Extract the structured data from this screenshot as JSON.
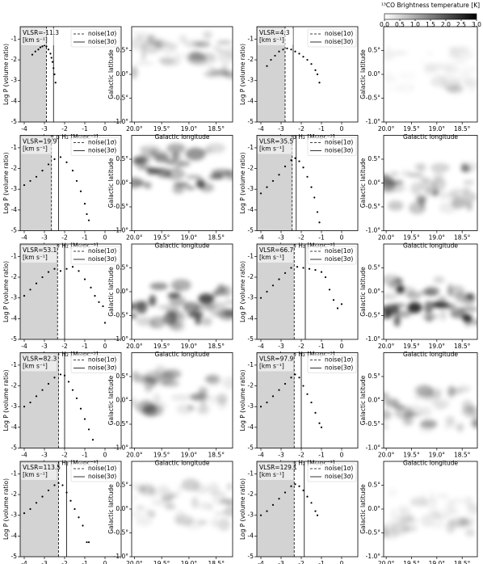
{
  "pdf_axes": {
    "xlabel": "Log  ρ H₂ [M⊙pc⁻³]",
    "ylabel": "Log P (volume ratio)",
    "xlim": [
      -4.2,
      0.8
    ],
    "ylim": [
      -5,
      -0.4
    ],
    "xticks": [
      -4,
      -3,
      -2,
      -1,
      0
    ],
    "yticks": [
      -5,
      -4,
      -3,
      -2,
      -1
    ],
    "annotation_unit": "[km s⁻¹]",
    "shade_color": "#d3d3d3",
    "point_color": "#000000",
    "legend": "upper right"
  },
  "map_axes": {
    "xlabel": "Galactic longitude",
    "ylabel": "Galactic latitude",
    "xlim": [
      20.05,
      18.2
    ],
    "ylim": [
      -1,
      1
    ],
    "xticks": [
      {
        "value": 20,
        "label": "20.0°"
      },
      {
        "value": 19.5,
        "label": "19.5°"
      },
      {
        "value": 19,
        "label": "19.0°"
      },
      {
        "value": 18.5,
        "label": "18.5°"
      }
    ],
    "yticks": [
      {
        "value": -1,
        "label": "-1.0°"
      },
      {
        "value": -0.5,
        "label": "-0.5°"
      },
      {
        "value": 0,
        "label": "0.0°"
      },
      {
        "value": 0.5,
        "label": "0.5°"
      }
    ]
  },
  "colorbar": {
    "title": "¹³CO Brightness temperature [K]",
    "lim": [
      0,
      3
    ],
    "ticks": [
      {
        "value": 0,
        "label": "0.0"
      },
      {
        "value": 0.5,
        "label": "0.5"
      },
      {
        "value": 1,
        "label": "1.0"
      },
      {
        "value": 1.5,
        "label": "1.5"
      },
      {
        "value": 2,
        "label": "2.0"
      },
      {
        "value": 2.5,
        "label": "2.5"
      },
      {
        "value": 3,
        "label": "3.0"
      }
    ],
    "colormap": "gray_r"
  },
  "chart_data": [
    {
      "type": "scatter",
      "annotation": "VLSR=-11.3",
      "x": [
        -3.6,
        -3.45,
        -3.3,
        -3.2,
        -3.1,
        -3.0,
        -2.9,
        -2.8,
        -2.7,
        -2.65,
        -2.6,
        -2.55,
        -2.5,
        -2.45
      ],
      "values": [
        -1.75,
        -1.6,
        -1.5,
        -1.4,
        -1.35,
        -1.3,
        -1.35,
        -1.5,
        -1.7,
        -1.9,
        -2.1,
        -2.4,
        -2.7,
        -3.1
      ],
      "noise": [
        {
          "name": "noise(1σ)",
          "x": -2.9,
          "style": "dashed"
        },
        {
          "name": "noise(3σ)",
          "x": -2.55,
          "style": "solid"
        }
      ]
    },
    {
      "type": "image"
    },
    {
      "type": "scatter",
      "annotation": "VLSR=4.3",
      "x": [
        -3.7,
        -3.5,
        -3.3,
        -3.1,
        -2.9,
        -2.7,
        -2.5,
        -2.3,
        -2.1,
        -1.9,
        -1.7,
        -1.5,
        -1.3,
        -1.2,
        -1.1
      ],
      "values": [
        -2.3,
        -2.0,
        -1.8,
        -1.6,
        -1.5,
        -1.45,
        -1.5,
        -1.6,
        -1.7,
        -1.85,
        -2.0,
        -2.2,
        -2.5,
        -2.7,
        -3.1
      ],
      "noise": [
        {
          "name": "noise(1σ)",
          "x": -2.8,
          "style": "dashed"
        },
        {
          "name": "noise(3σ)",
          "x": -2.4,
          "style": "solid"
        }
      ]
    },
    {
      "type": "image"
    },
    {
      "type": "scatter",
      "annotation": "VLSR=19.9",
      "x": [
        -4,
        -3.7,
        -3.4,
        -3.1,
        -2.8,
        -2.5,
        -2.2,
        -1.9,
        -1.6,
        -1.4,
        -1.2,
        -1.0,
        -0.9,
        -0.8
      ],
      "values": [
        -2.8,
        -2.6,
        -2.4,
        -2.1,
        -1.8,
        -1.55,
        -1.45,
        -1.7,
        -2.1,
        -2.6,
        -3.1,
        -3.7,
        -4.2,
        -4.5
      ],
      "noise": [
        {
          "name": "noise(1σ)",
          "x": -2.65,
          "style": "dashed"
        },
        {
          "name": "noise(3σ)",
          "x": -2.3,
          "style": "solid"
        }
      ]
    },
    {
      "type": "image"
    },
    {
      "type": "scatter",
      "annotation": "VLSR=35.5",
      "x": [
        -4,
        -3.7,
        -3.4,
        -3.1,
        -2.8,
        -2.5,
        -2.3,
        -2.1,
        -1.9,
        -1.7,
        -1.5,
        -1.35,
        -1.2,
        -1.1
      ],
      "values": [
        -3.2,
        -2.9,
        -2.6,
        -2.3,
        -1.9,
        -1.6,
        -1.5,
        -1.65,
        -1.95,
        -2.4,
        -2.9,
        -3.4,
        -4.1,
        -4.6
      ],
      "noise": [
        {
          "name": "noise(1σ)",
          "x": -2.45,
          "style": "dashed"
        },
        {
          "name": "noise(3σ)",
          "x": -2.25,
          "style": "solid"
        }
      ]
    },
    {
      "type": "image"
    },
    {
      "type": "scatter",
      "annotation": "VLSR=53.1",
      "x": [
        -4,
        -3.7,
        -3.4,
        -3.1,
        -2.8,
        -2.5,
        -2.2,
        -1.9,
        -1.6,
        -1.3,
        -1.0,
        -0.7,
        -0.5,
        -0.3,
        -0.1,
        0.0
      ],
      "values": [
        -2.9,
        -2.6,
        -2.3,
        -2.0,
        -1.75,
        -1.6,
        -1.7,
        -1.6,
        -1.5,
        -1.7,
        -2.1,
        -2.5,
        -2.9,
        -3.2,
        -3.4,
        -4.2
      ],
      "noise": [
        {
          "name": "noise(1σ)",
          "x": -2.35,
          "style": "dashed"
        },
        {
          "name": "noise(3σ)",
          "x": -2.0,
          "style": "solid"
        }
      ]
    },
    {
      "type": "image"
    },
    {
      "type": "scatter",
      "annotation": "VLSR=66.7",
      "x": [
        -4,
        -3.7,
        -3.4,
        -3.1,
        -2.8,
        -2.5,
        -2.2,
        -1.9,
        -1.6,
        -1.3,
        -1.0,
        -0.8,
        -0.6,
        -0.4,
        -0.2,
        0.0
      ],
      "values": [
        -3.0,
        -2.7,
        -2.4,
        -2.1,
        -1.8,
        -1.55,
        -1.5,
        -1.55,
        -1.6,
        -1.65,
        -1.75,
        -2.0,
        -2.6,
        -3.1,
        -3.5,
        -3.3
      ],
      "noise": [
        {
          "name": "noise(1σ)",
          "x": -2.35,
          "style": "dashed"
        },
        {
          "name": "noise(3σ)",
          "x": -1.8,
          "style": "solid"
        }
      ]
    },
    {
      "type": "image"
    },
    {
      "type": "scatter",
      "annotation": "VLSR=82.3",
      "x": [
        -4,
        -3.7,
        -3.4,
        -3.1,
        -2.8,
        -2.5,
        -2.2,
        -2.0,
        -1.8,
        -1.6,
        -1.4,
        -1.2,
        -1.0,
        -0.8,
        -0.6
      ],
      "values": [
        -3.0,
        -2.8,
        -2.5,
        -2.2,
        -1.9,
        -1.6,
        -1.45,
        -1.5,
        -1.8,
        -2.2,
        -2.6,
        -3.1,
        -3.6,
        -4.1,
        -4.6
      ],
      "noise": [
        {
          "name": "noise(1σ)",
          "x": -2.3,
          "style": "dashed"
        },
        {
          "name": "noise(3σ)",
          "x": -2.0,
          "style": "solid"
        }
      ]
    },
    {
      "type": "image"
    },
    {
      "type": "scatter",
      "annotation": "VLSR=97.9",
      "x": [
        -4,
        -3.7,
        -3.4,
        -3.1,
        -2.8,
        -2.5,
        -2.3,
        -2.1,
        -1.9,
        -1.7,
        -1.5,
        -1.3,
        -1.1,
        -1.0
      ],
      "values": [
        -3.0,
        -2.8,
        -2.5,
        -2.2,
        -1.9,
        -1.6,
        -1.45,
        -1.6,
        -2.0,
        -2.4,
        -2.8,
        -3.3,
        -3.8,
        -4.0
      ],
      "noise": [
        {
          "name": "noise(1σ)",
          "x": -2.35,
          "style": "dashed"
        },
        {
          "name": "noise(3σ)",
          "x": -2.0,
          "style": "solid"
        }
      ]
    },
    {
      "type": "image"
    },
    {
      "type": "scatter",
      "annotation": "VLSR=113.5",
      "x": [
        -4,
        -3.7,
        -3.4,
        -3.1,
        -2.8,
        -2.5,
        -2.3,
        -2.1,
        -1.9,
        -1.7,
        -1.5,
        -1.3,
        -1.1,
        -0.9,
        -0.8
      ],
      "values": [
        -2.9,
        -2.7,
        -2.4,
        -2.1,
        -1.8,
        -1.55,
        -1.45,
        -1.55,
        -1.9,
        -2.3,
        -2.7,
        -3.1,
        -3.5,
        -4.3,
        -4.3
      ],
      "noise": [
        {
          "name": "noise(1σ)",
          "x": -2.3,
          "style": "dashed"
        },
        {
          "name": "noise(3σ)",
          "x": -1.9,
          "style": "solid"
        }
      ]
    },
    {
      "type": "image"
    },
    {
      "type": "scatter",
      "annotation": "VLSR=129.1",
      "x": [
        -4,
        -3.7,
        -3.4,
        -3.1,
        -2.8,
        -2.5,
        -2.3,
        -2.1,
        -1.9,
        -1.7,
        -1.5,
        -1.3,
        -1.2
      ],
      "values": [
        -3.0,
        -2.8,
        -2.5,
        -2.2,
        -1.9,
        -1.6,
        -1.5,
        -1.6,
        -1.8,
        -2.1,
        -2.4,
        -2.8,
        -3.0
      ],
      "noise": [
        {
          "name": "noise(1σ)",
          "x": -2.35,
          "style": "dashed"
        },
        {
          "name": "noise(3σ)",
          "x": -1.85,
          "style": "solid"
        }
      ]
    },
    {
      "type": "image"
    }
  ]
}
